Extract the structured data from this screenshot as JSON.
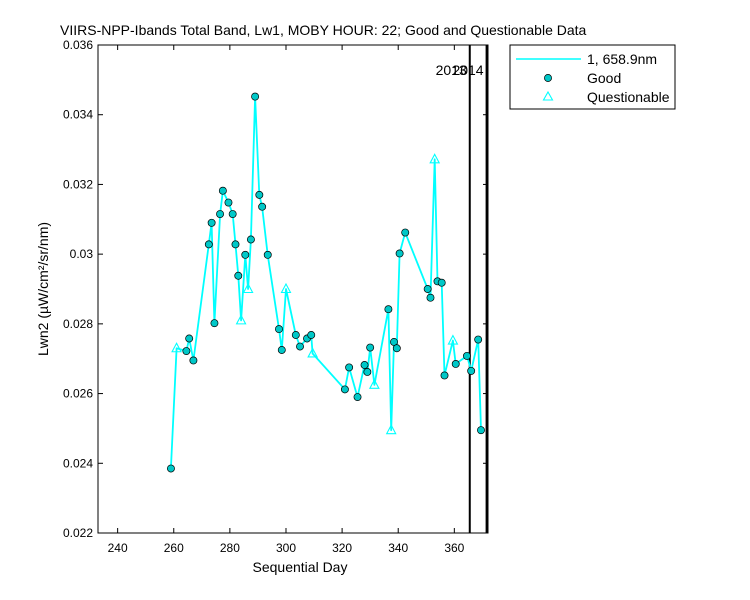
{
  "chart_data": {
    "type": "line",
    "title": "VIIRS-NPP-Ibands Total Band, Lw1, MOBY HOUR: 22;  Good and Questionable Data",
    "xlabel": "Sequential Day",
    "ylabel": "Lwn2 (µW/cm²/sr/nm)",
    "xlim": [
      233,
      372
    ],
    "ylim": [
      0.022,
      0.036
    ],
    "xticks": [
      240,
      260,
      280,
      300,
      320,
      340,
      360
    ],
    "xtick_labels": [
      "240",
      "260",
      "280",
      "300",
      "320",
      "340",
      "360"
    ],
    "yticks": [
      0.022,
      0.024,
      0.026,
      0.028,
      0.03,
      0.032,
      0.034,
      0.036
    ],
    "ytick_labels": [
      "0.022",
      "0.024",
      "0.026",
      "0.028",
      "0.03",
      "0.032",
      "0.034",
      "0.036"
    ],
    "grid": false,
    "line_color": "#00ffff",
    "marker_fill": "#00c8c8",
    "series": [
      {
        "name": "1, 658.9nm",
        "kind": "line",
        "points": [
          [
            259,
            0.02385
          ],
          [
            261,
            0.0273
          ],
          [
            264.5,
            0.02722
          ],
          [
            265.5,
            0.02758
          ],
          [
            267,
            0.02695
          ],
          [
            272.5,
            0.03028
          ],
          [
            273.5,
            0.0309
          ],
          [
            274.5,
            0.02802
          ],
          [
            276.5,
            0.03115
          ],
          [
            277.5,
            0.03182
          ],
          [
            279.5,
            0.03148
          ],
          [
            281,
            0.03115
          ],
          [
            282,
            0.03028
          ],
          [
            283,
            0.02938
          ],
          [
            284,
            0.0281
          ],
          [
            285.5,
            0.02998
          ],
          [
            286.5,
            0.029
          ],
          [
            287.5,
            0.03042
          ],
          [
            289,
            0.03452
          ],
          [
            290.5,
            0.0317
          ],
          [
            291.5,
            0.03136
          ],
          [
            293.5,
            0.02998
          ],
          [
            297.5,
            0.02785
          ],
          [
            298.5,
            0.02725
          ],
          [
            300,
            0.029
          ],
          [
            303.5,
            0.02768
          ],
          [
            305,
            0.02735
          ],
          [
            307.5,
            0.02758
          ],
          [
            309,
            0.02768
          ],
          [
            309.5,
            0.02715
          ],
          [
            321,
            0.02612
          ],
          [
            322.5,
            0.02675
          ],
          [
            325.5,
            0.0259
          ],
          [
            328,
            0.02682
          ],
          [
            329,
            0.02662
          ],
          [
            330,
            0.02732
          ],
          [
            331.5,
            0.02625
          ],
          [
            336.5,
            0.02842
          ],
          [
            337.5,
            0.02495
          ],
          [
            338.5,
            0.02748
          ],
          [
            339.5,
            0.0273
          ],
          [
            340.5,
            0.03002
          ],
          [
            342.5,
            0.03062
          ],
          [
            350.5,
            0.029
          ],
          [
            351.5,
            0.02875
          ],
          [
            353,
            0.03272
          ],
          [
            354,
            0.02922
          ],
          [
            355.5,
            0.02918
          ],
          [
            356.5,
            0.02652
          ],
          [
            359.5,
            0.02752
          ],
          [
            360.5,
            0.02685
          ],
          [
            364.5,
            0.02708
          ],
          [
            366,
            0.02665
          ],
          [
            368.5,
            0.02755
          ],
          [
            369.5,
            0.02495
          ]
        ]
      },
      {
        "name": "Good",
        "kind": "circle",
        "points": [
          [
            259,
            0.02385
          ],
          [
            264.5,
            0.02722
          ],
          [
            265.5,
            0.02758
          ],
          [
            267,
            0.02695
          ],
          [
            272.5,
            0.03028
          ],
          [
            273.5,
            0.0309
          ],
          [
            274.5,
            0.02802
          ],
          [
            276.5,
            0.03115
          ],
          [
            277.5,
            0.03182
          ],
          [
            279.5,
            0.03148
          ],
          [
            281,
            0.03115
          ],
          [
            282,
            0.03028
          ],
          [
            283,
            0.02938
          ],
          [
            285.5,
            0.02998
          ],
          [
            287.5,
            0.03042
          ],
          [
            289,
            0.03452
          ],
          [
            290.5,
            0.0317
          ],
          [
            291.5,
            0.03136
          ],
          [
            293.5,
            0.02998
          ],
          [
            297.5,
            0.02785
          ],
          [
            298.5,
            0.02725
          ],
          [
            303.5,
            0.02768
          ],
          [
            305,
            0.02735
          ],
          [
            307.5,
            0.02758
          ],
          [
            309,
            0.02768
          ],
          [
            321,
            0.02612
          ],
          [
            322.5,
            0.02675
          ],
          [
            325.5,
            0.0259
          ],
          [
            328,
            0.02682
          ],
          [
            329,
            0.02662
          ],
          [
            330,
            0.02732
          ],
          [
            336.5,
            0.02842
          ],
          [
            338.5,
            0.02748
          ],
          [
            339.5,
            0.0273
          ],
          [
            340.5,
            0.03002
          ],
          [
            342.5,
            0.03062
          ],
          [
            350.5,
            0.029
          ],
          [
            351.5,
            0.02875
          ],
          [
            354,
            0.02922
          ],
          [
            355.5,
            0.02918
          ],
          [
            356.5,
            0.02652
          ],
          [
            360.5,
            0.02685
          ],
          [
            364.5,
            0.02708
          ],
          [
            366,
            0.02665
          ],
          [
            368.5,
            0.02755
          ],
          [
            369.5,
            0.02495
          ]
        ]
      },
      {
        "name": "Questionable",
        "kind": "triangle",
        "points": [
          [
            261,
            0.0273
          ],
          [
            284,
            0.0281
          ],
          [
            286.5,
            0.029
          ],
          [
            300,
            0.029
          ],
          [
            309.5,
            0.02715
          ],
          [
            331.5,
            0.02625
          ],
          [
            337.5,
            0.02495
          ],
          [
            353,
            0.03272
          ],
          [
            359.5,
            0.02752
          ]
        ]
      }
    ],
    "year_markers": [
      {
        "x": 365.5,
        "label": "2013"
      },
      {
        "x": 371.5,
        "label": "2014"
      }
    ],
    "legend": {
      "position": "top-right-outside",
      "entries": [
        "1, 658.9nm",
        "Good",
        "Questionable"
      ]
    }
  }
}
